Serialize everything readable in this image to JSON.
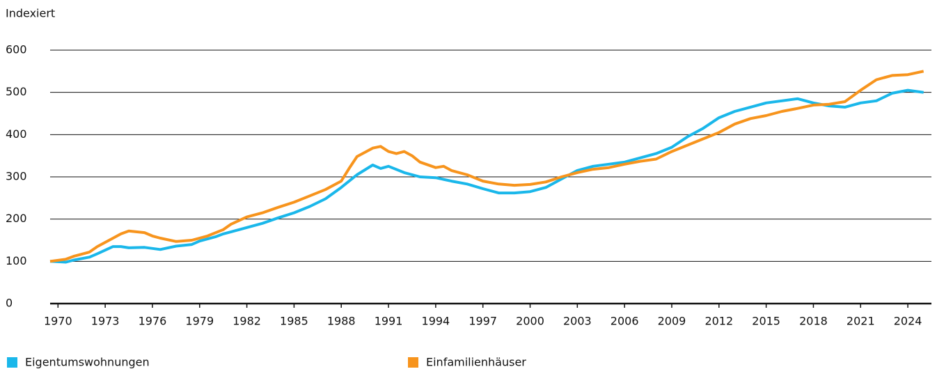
{
  "chart_data": {
    "type": "line",
    "ylabel": "Indexiert",
    "xlim": [
      1969.5,
      2025.5
    ],
    "ylim": [
      0,
      600
    ],
    "xticks": [
      1970,
      1973,
      1976,
      1979,
      1982,
      1985,
      1988,
      1991,
      1994,
      1997,
      2000,
      2003,
      2006,
      2009,
      2012,
      2015,
      2018,
      2021,
      2024
    ],
    "yticks": [
      0,
      100,
      200,
      300,
      400,
      500,
      600
    ],
    "grid": true,
    "legend": "bottom",
    "series": [
      {
        "name": "Eigentumswohnungen",
        "color": "#1ab7ea",
        "x": [
          1969.5,
          1970.5,
          1971,
          1972,
          1972.5,
          1973.5,
          1974,
          1974.5,
          1975.5,
          1976.5,
          1977.5,
          1978.5,
          1979,
          1980,
          1980.5,
          1981,
          1982,
          1983,
          1984,
          1985,
          1986,
          1987,
          1988,
          1988.5,
          1989,
          1990,
          1990.5,
          1991,
          1992,
          1993,
          1994,
          1995,
          1996,
          1997,
          1998,
          1999,
          2000,
          2001,
          2002,
          2003,
          2004,
          2005,
          2006,
          2007,
          2008,
          2009,
          2010,
          2011,
          2012,
          2013,
          2014,
          2015,
          2016,
          2017,
          2018,
          2019,
          2020,
          2021,
          2022,
          2023,
          2024,
          2025
        ],
        "values": [
          100,
          98,
          103,
          110,
          118,
          135,
          135,
          132,
          133,
          128,
          136,
          140,
          148,
          158,
          165,
          170,
          180,
          190,
          203,
          215,
          230,
          248,
          275,
          290,
          305,
          328,
          320,
          325,
          310,
          300,
          298,
          290,
          283,
          272,
          262,
          262,
          265,
          275,
          295,
          315,
          325,
          330,
          335,
          345,
          355,
          370,
          395,
          415,
          440,
          455,
          465,
          475,
          480,
          485,
          475,
          468,
          465,
          475,
          480,
          498,
          505,
          500
        ]
      },
      {
        "name": "Einfamilienhäuser",
        "color": "#f7941d",
        "x": [
          1969.5,
          1970.5,
          1971,
          1972,
          1972.5,
          1973.5,
          1974,
          1974.5,
          1975.5,
          1976,
          1976.5,
          1977.5,
          1978.5,
          1979.5,
          1980.5,
          1981,
          1982,
          1983,
          1984,
          1985,
          1986,
          1987,
          1988,
          1988.5,
          1989,
          1990,
          1990.5,
          1991,
          1991.5,
          1992,
          1992.5,
          1993,
          1994,
          1994.5,
          1995,
          1996,
          1997,
          1998,
          1999,
          2000,
          2001,
          2002,
          2003,
          2004,
          2005,
          2006,
          2007,
          2008,
          2009,
          2010,
          2011,
          2012,
          2013,
          2014,
          2015,
          2016,
          2017,
          2018,
          2019,
          2020,
          2021,
          2022,
          2023,
          2024,
          2025
        ],
        "values": [
          100,
          105,
          112,
          122,
          135,
          155,
          165,
          172,
          168,
          160,
          155,
          147,
          150,
          160,
          175,
          188,
          205,
          215,
          228,
          240,
          255,
          270,
          290,
          320,
          348,
          368,
          372,
          360,
          355,
          360,
          350,
          335,
          322,
          325,
          315,
          305,
          290,
          283,
          280,
          282,
          288,
          300,
          310,
          318,
          322,
          330,
          337,
          342,
          360,
          375,
          390,
          405,
          425,
          438,
          445,
          455,
          462,
          470,
          472,
          478,
          505,
          530,
          540,
          542,
          550
        ]
      }
    ]
  }
}
